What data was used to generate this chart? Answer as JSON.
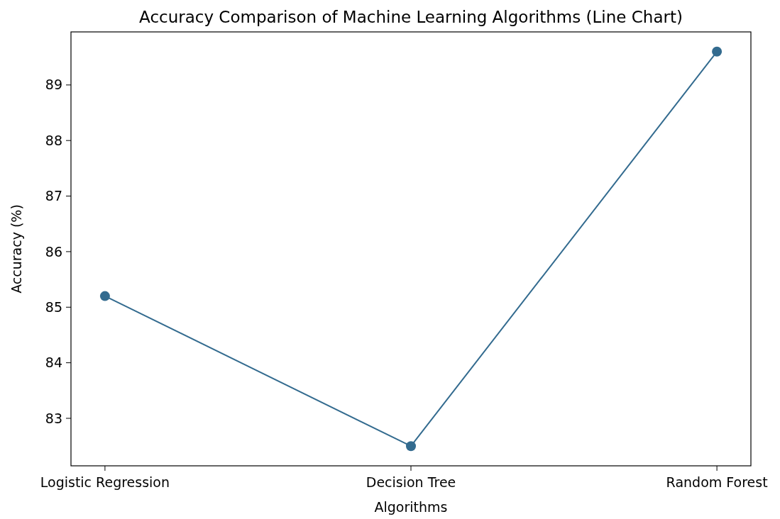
{
  "chart_data": {
    "type": "line",
    "title": "Accuracy Comparison of Machine Learning Algorithms (Line Chart)",
    "xlabel": "Algorithms",
    "ylabel": "Accuracy (%)",
    "categories": [
      "Logistic Regression",
      "Decision Tree",
      "Random Forest"
    ],
    "series": [
      {
        "color": "#336b8f",
        "values": [
          85.2,
          82.5,
          89.6
        ]
      }
    ],
    "ylim": [
      82.145,
      89.955
    ],
    "yticks": [
      83,
      84,
      85,
      86,
      87,
      88,
      89
    ],
    "marker": "circle",
    "line_style": "solid",
    "grid": false
  }
}
